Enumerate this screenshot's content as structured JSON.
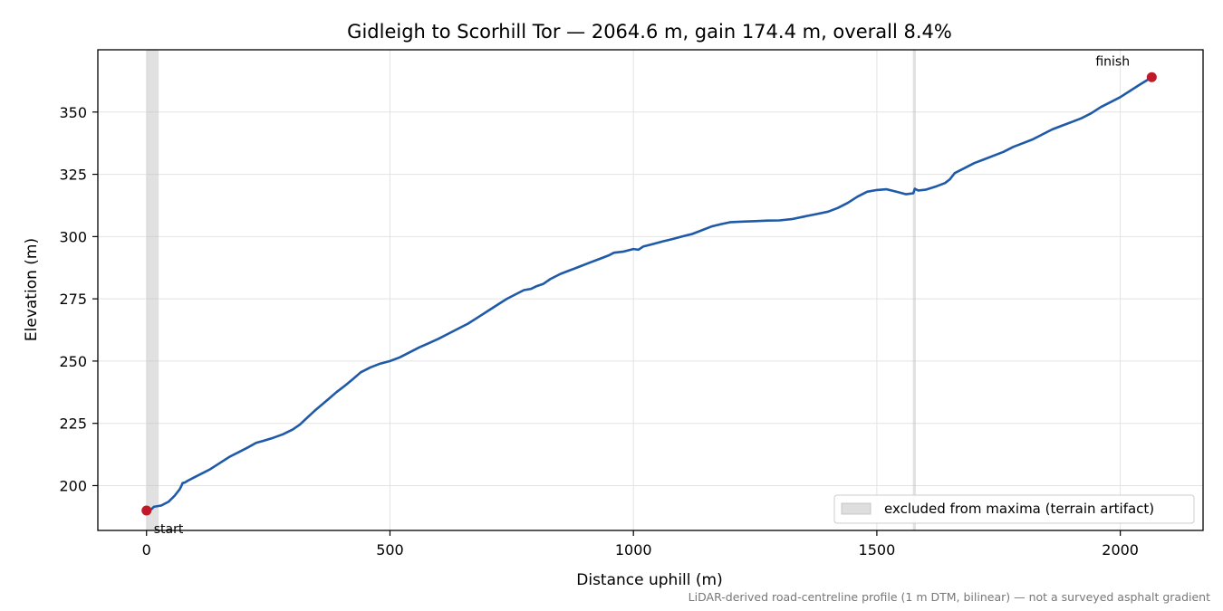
{
  "chart_data": {
    "type": "line",
    "title": "Gidleigh to Scorhill Tor — 2064.6 m, gain 174.4 m, overall 8.4%",
    "xlabel": "Distance uphill (m)",
    "ylabel": "Elevation (m)",
    "xlim": [
      -100,
      2170
    ],
    "ylim": [
      182,
      375
    ],
    "xticks": [
      0,
      500,
      1000,
      1500,
      2000
    ],
    "yticks": [
      200,
      225,
      250,
      275,
      300,
      325,
      350
    ],
    "grid": true,
    "footnote": "LiDAR-derived road-centreline profile (1 m DTM, bilinear) — not a surveyed asphalt gradient",
    "legend": {
      "placement": "lower-right",
      "entries": [
        {
          "label": "excluded from maxima (terrain artifact)",
          "color": "#bdbdbd"
        }
      ]
    },
    "excluded_ranges": [
      [
        0,
        25
      ],
      [
        1574,
        1580
      ]
    ],
    "series": [
      {
        "color": "#1f5aa8",
        "points": [
          [
            0,
            190
          ],
          [
            10,
            190.5
          ],
          [
            15,
            191.5
          ],
          [
            30,
            192
          ],
          [
            45,
            193.5
          ],
          [
            58,
            196
          ],
          [
            68,
            198.5
          ],
          [
            72,
            200
          ],
          [
            74,
            201
          ],
          [
            78,
            201.2
          ],
          [
            85,
            202
          ],
          [
            100,
            203.5
          ],
          [
            115,
            205
          ],
          [
            130,
            206.5
          ],
          [
            150,
            209
          ],
          [
            170,
            211.5
          ],
          [
            190,
            213.5
          ],
          [
            210,
            215.5
          ],
          [
            225,
            217.2
          ],
          [
            240,
            218
          ],
          [
            260,
            219.2
          ],
          [
            280,
            220.6
          ],
          [
            300,
            222.5
          ],
          [
            315,
            224.5
          ],
          [
            330,
            227.3
          ],
          [
            345,
            230
          ],
          [
            360,
            232.5
          ],
          [
            375,
            235
          ],
          [
            390,
            237.5
          ],
          [
            410,
            240.5
          ],
          [
            425,
            243
          ],
          [
            440,
            245.5
          ],
          [
            460,
            247.5
          ],
          [
            480,
            249
          ],
          [
            500,
            250
          ],
          [
            520,
            251.5
          ],
          [
            540,
            253.5
          ],
          [
            560,
            255.5
          ],
          [
            580,
            257.2
          ],
          [
            600,
            259
          ],
          [
            620,
            261
          ],
          [
            640,
            263
          ],
          [
            660,
            265
          ],
          [
            680,
            267.5
          ],
          [
            700,
            270
          ],
          [
            720,
            272.5
          ],
          [
            740,
            275
          ],
          [
            760,
            277
          ],
          [
            775,
            278.5
          ],
          [
            790,
            279
          ],
          [
            800,
            280
          ],
          [
            815,
            281
          ],
          [
            830,
            283
          ],
          [
            850,
            285
          ],
          [
            870,
            286.5
          ],
          [
            890,
            288
          ],
          [
            910,
            289.5
          ],
          [
            930,
            291
          ],
          [
            950,
            292.5
          ],
          [
            960,
            293.5
          ],
          [
            980,
            294
          ],
          [
            990,
            294.5
          ],
          [
            1000,
            295
          ],
          [
            1010,
            294.7
          ],
          [
            1020,
            296
          ],
          [
            1040,
            297
          ],
          [
            1060,
            298
          ],
          [
            1080,
            299
          ],
          [
            1100,
            300
          ],
          [
            1120,
            301
          ],
          [
            1140,
            302.5
          ],
          [
            1160,
            304
          ],
          [
            1180,
            305
          ],
          [
            1200,
            305.8
          ],
          [
            1225,
            306
          ],
          [
            1250,
            306.2
          ],
          [
            1275,
            306.4
          ],
          [
            1300,
            306.5
          ],
          [
            1325,
            307
          ],
          [
            1350,
            308
          ],
          [
            1375,
            309
          ],
          [
            1400,
            310
          ],
          [
            1420,
            311.5
          ],
          [
            1440,
            313.5
          ],
          [
            1460,
            316
          ],
          [
            1480,
            318
          ],
          [
            1500,
            318.7
          ],
          [
            1520,
            319
          ],
          [
            1540,
            318
          ],
          [
            1560,
            317
          ],
          [
            1575,
            317.4
          ],
          [
            1578,
            319.2
          ],
          [
            1585,
            318.5
          ],
          [
            1600,
            318.8
          ],
          [
            1620,
            320
          ],
          [
            1640,
            321.5
          ],
          [
            1650,
            323
          ],
          [
            1660,
            325.5
          ],
          [
            1680,
            327.5
          ],
          [
            1700,
            329.5
          ],
          [
            1720,
            331
          ],
          [
            1740,
            332.5
          ],
          [
            1760,
            334
          ],
          [
            1780,
            336
          ],
          [
            1800,
            337.5
          ],
          [
            1820,
            339
          ],
          [
            1840,
            341
          ],
          [
            1860,
            343
          ],
          [
            1880,
            344.5
          ],
          [
            1900,
            346
          ],
          [
            1920,
            347.5
          ],
          [
            1940,
            349.5
          ],
          [
            1960,
            352
          ],
          [
            1980,
            354
          ],
          [
            2000,
            356
          ],
          [
            2020,
            358.5
          ],
          [
            2040,
            361
          ],
          [
            2064.6,
            364
          ]
        ]
      }
    ],
    "annotations": [
      {
        "label": "start",
        "x": 0,
        "y": 190,
        "color": "#c0192a"
      },
      {
        "label": "finish",
        "x": 2064.6,
        "y": 364,
        "color": "#c0192a"
      }
    ]
  }
}
